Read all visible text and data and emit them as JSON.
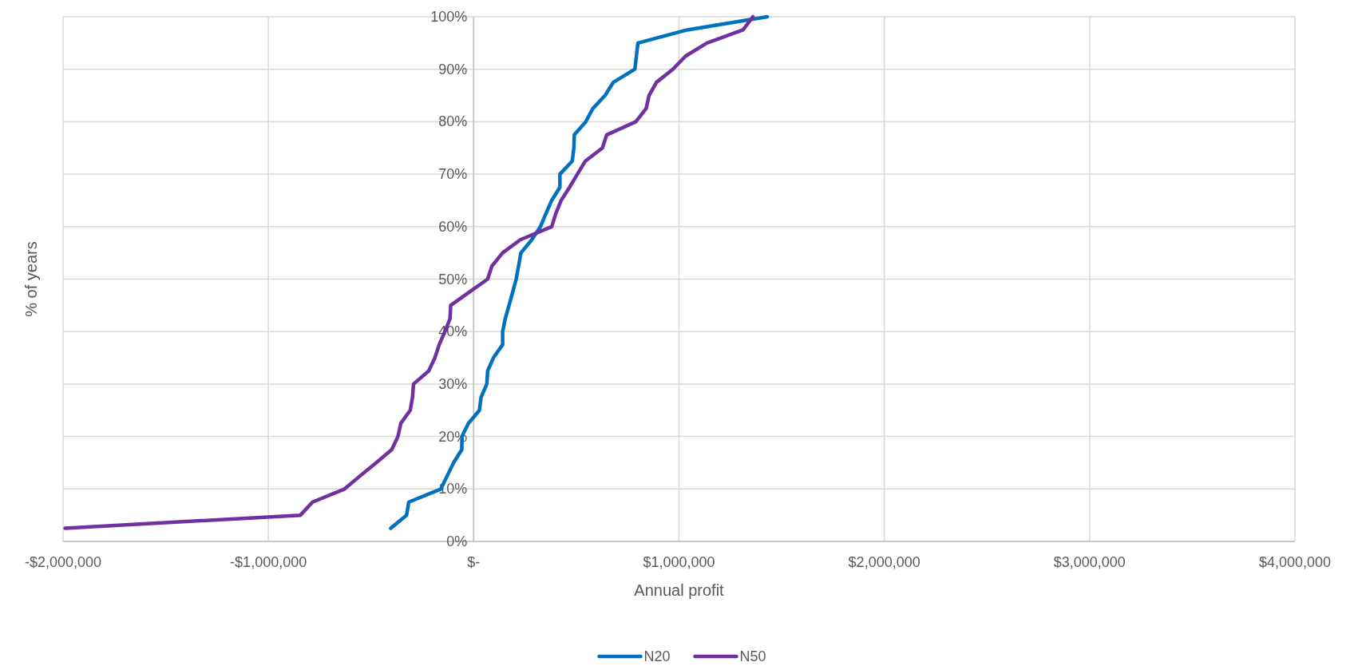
{
  "chart_data": {
    "type": "line",
    "xlabel": "Annual profit",
    "ylabel": "% of years",
    "xlim": [
      -2000000,
      4000000
    ],
    "xticks": [
      {
        "value": -2000000,
        "label": "-$2,000,000"
      },
      {
        "value": -1000000,
        "label": "-$1,000,000"
      },
      {
        "value": 0,
        "label": "$-"
      },
      {
        "value": 1000000,
        "label": "$1,000,000"
      },
      {
        "value": 2000000,
        "label": "$2,000,000"
      },
      {
        "value": 3000000,
        "label": "$3,000,000"
      },
      {
        "value": 4000000,
        "label": "$4,000,000"
      }
    ],
    "ylim": [
      0,
      100
    ],
    "yticks": [
      {
        "value": 0,
        "label": "0%"
      },
      {
        "value": 10,
        "label": "10%"
      },
      {
        "value": 20,
        "label": "20%"
      },
      {
        "value": 30,
        "label": "30%"
      },
      {
        "value": 40,
        "label": "40%"
      },
      {
        "value": 50,
        "label": "50%"
      },
      {
        "value": 60,
        "label": "60%"
      },
      {
        "value": 70,
        "label": "70%"
      },
      {
        "value": 80,
        "label": "80%"
      },
      {
        "value": 90,
        "label": "90%"
      },
      {
        "value": 100,
        "label": "100%"
      }
    ],
    "grid": true,
    "legend": "bottom",
    "marker": "none",
    "line_style": "solid",
    "series": [
      {
        "name": "N20",
        "color": "#0070c0",
        "x": [
          -404000,
          -327000,
          -316000,
          -160000,
          -129000,
          -98000,
          -58000,
          -57000,
          -26000,
          28000,
          36000,
          64000,
          68000,
          96000,
          141000,
          141000,
          154000,
          172000,
          190000,
          207000,
          230000,
          283000,
          325000,
          352000,
          380000,
          420000,
          420000,
          480000,
          488000,
          490000,
          546000,
          580000,
          640000,
          680000,
          785000,
          800000,
          1040000,
          1430000
        ],
        "values": [
          2.5,
          5,
          7.5,
          10,
          12.5,
          15,
          17.5,
          20,
          22.5,
          25,
          27.5,
          30,
          32.5,
          35,
          37.5,
          40,
          42.5,
          45,
          47.5,
          50,
          55,
          57.5,
          60,
          62.5,
          65,
          67.5,
          70,
          72.5,
          75,
          77.5,
          80,
          82.5,
          85,
          87.5,
          90,
          95,
          97.5,
          100
        ]
      },
      {
        "name": "N50",
        "color": "#7030a0",
        "x": [
          -1990000,
          -844000,
          -785000,
          -629000,
          -553000,
          -475000,
          -399000,
          -369000,
          -355000,
          -309000,
          -298000,
          -293000,
          -219000,
          -189000,
          -168000,
          -140000,
          -115000,
          -112000,
          -22000,
          68000,
          89000,
          141000,
          227000,
          380000,
          400000,
          426000,
          467000,
          505000,
          544000,
          627000,
          648000,
          790000,
          840000,
          854000,
          890000,
          970000,
          1032000,
          1136000,
          1312000,
          1360000
        ],
        "values": [
          2.5,
          5,
          7.5,
          10,
          12.5,
          15,
          17.5,
          20,
          22.5,
          25,
          27.5,
          30,
          32.5,
          35,
          37.5,
          40,
          42.5,
          45,
          47.5,
          50,
          52.5,
          55,
          57.5,
          60,
          62.5,
          65,
          67.5,
          70,
          72.5,
          75,
          77.5,
          80,
          82.5,
          85,
          87.5,
          90,
          92.5,
          95,
          97.5,
          100
        ]
      }
    ]
  }
}
